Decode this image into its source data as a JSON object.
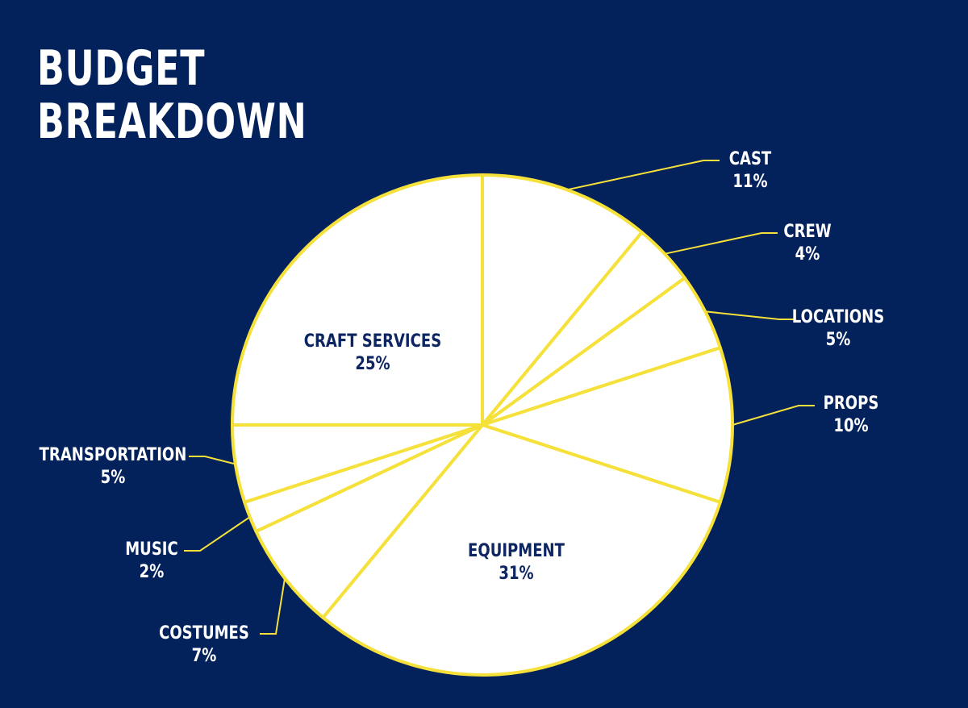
{
  "header": {
    "title_line1": "BUDGET",
    "title_line2": "BREAKDOWN"
  },
  "colors": {
    "background": "#03225b",
    "slice_fill": "#ffffff",
    "stroke": "#f5e13a",
    "outside_label": "#ffffff",
    "inside_label": "#0d2560"
  },
  "chart_data": {
    "type": "pie",
    "title": "BUDGET BREAKDOWN",
    "unit": "%",
    "slices": [
      {
        "label": "CAST",
        "value": 11,
        "value_text": "11%"
      },
      {
        "label": "CREW",
        "value": 4,
        "value_text": "4%"
      },
      {
        "label": "LOCATIONS",
        "value": 5,
        "value_text": "5%"
      },
      {
        "label": "PROPS",
        "value": 10,
        "value_text": "10%"
      },
      {
        "label": "EQUIPMENT",
        "value": 31,
        "value_text": "31%"
      },
      {
        "label": "COSTUMES",
        "value": 7,
        "value_text": "7%"
      },
      {
        "label": "MUSIC",
        "value": 2,
        "value_text": "2%"
      },
      {
        "label": "TRANSPORTATION",
        "value": 5,
        "value_text": "5%"
      },
      {
        "label": "CRAFT SERVICES",
        "value": 25,
        "value_text": "25%"
      }
    ]
  }
}
